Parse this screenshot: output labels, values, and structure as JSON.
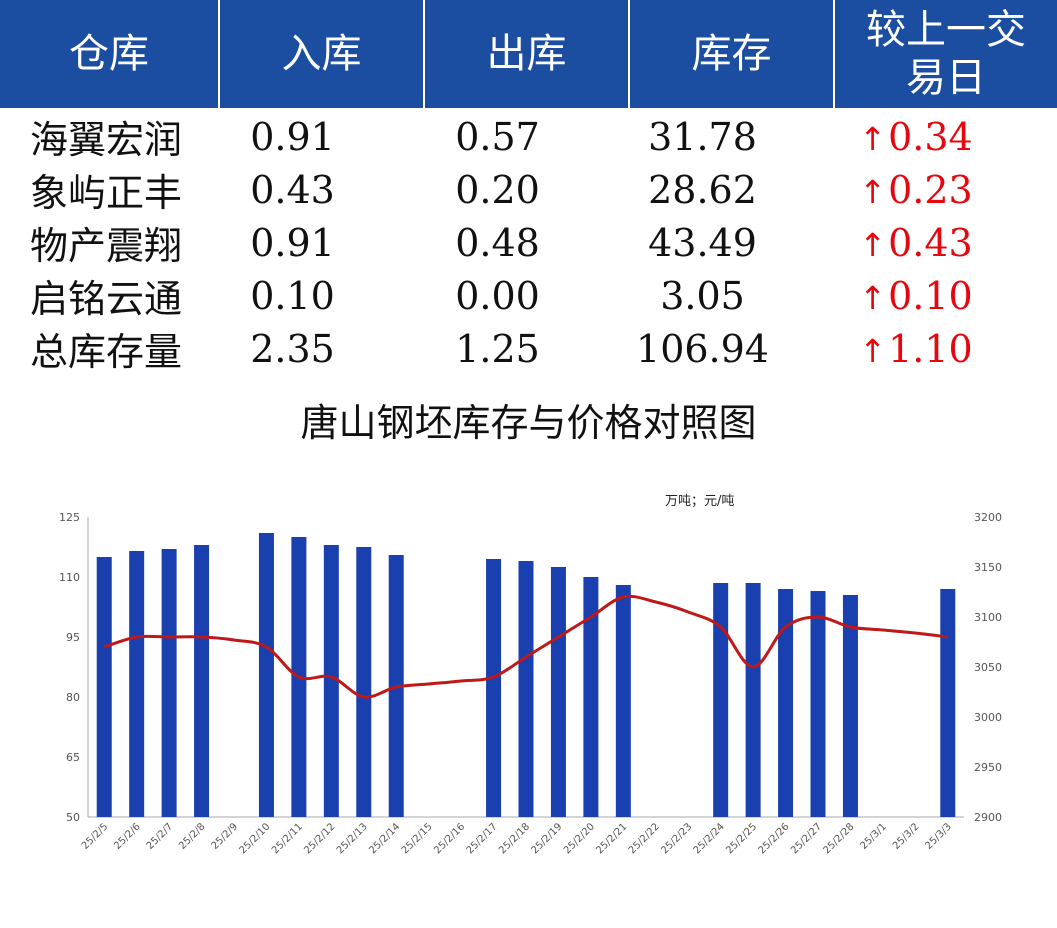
{
  "table": {
    "headers": [
      "仓库",
      "入库",
      "出库",
      "库存",
      "较上一交易日"
    ],
    "rows": [
      {
        "name": "海翼宏润",
        "in": "0.91",
        "out": "0.57",
        "stock": "31.78",
        "change": "0.34"
      },
      {
        "name": "象屿正丰",
        "in": "0.43",
        "out": "0.20",
        "stock": "28.62",
        "change": "0.23"
      },
      {
        "name": "物产震翔",
        "in": "0.91",
        "out": "0.48",
        "stock": "43.49",
        "change": "0.43"
      },
      {
        "name": "启铭云通",
        "in": "0.10",
        "out": "0.00",
        "stock": "3.05",
        "change": "0.10"
      },
      {
        "name": "总库存量",
        "in": "2.35",
        "out": "1.25",
        "stock": "106.94",
        "change": "1.10"
      }
    ],
    "header_color": "#1b4da0",
    "up_color": "#e8060e",
    "up_icon": "up-arrow-icon"
  },
  "chart_data": {
    "type": "bar",
    "title": "唐山钢坯库存与价格对照图",
    "unit_label": "万吨；元/吨",
    "categories": [
      "25/2/5",
      "25/2/6",
      "25/2/7",
      "25/2/8",
      "25/2/9",
      "25/2/10",
      "25/2/11",
      "25/2/12",
      "25/2/13",
      "25/2/14",
      "25/2/15",
      "25/2/16",
      "25/2/17",
      "25/2/18",
      "25/2/19",
      "25/2/20",
      "25/2/21",
      "25/2/22",
      "25/2/23",
      "25/2/24",
      "25/2/25",
      "25/2/26",
      "25/2/27",
      "25/2/28",
      "25/3/1",
      "25/3/2",
      "25/3/3"
    ],
    "series": [
      {
        "type": "bar",
        "axis": "left",
        "color": "#1a3fae",
        "values": [
          115,
          116.5,
          117,
          118,
          null,
          121,
          120,
          118,
          117.5,
          115.5,
          null,
          null,
          114.5,
          114,
          112.5,
          110,
          108,
          null,
          null,
          108.5,
          108.5,
          107,
          106.5,
          105.5,
          null,
          null,
          107
        ]
      },
      {
        "type": "line",
        "axis": "right",
        "color": "#c01818",
        "values": [
          3070,
          3080,
          3080,
          3080,
          3077,
          3070,
          3040,
          3040,
          3020,
          3030,
          3033,
          3036,
          3040,
          3060,
          3080,
          3100,
          3120,
          3115,
          3105,
          3090,
          3050,
          3090,
          3100,
          3090,
          3087,
          3084,
          3080
        ]
      }
    ],
    "y_left": {
      "min": 50,
      "max": 125,
      "ticks": [
        "50",
        "65",
        "80",
        "95",
        "110",
        "125"
      ]
    },
    "y_right": {
      "min": 2900,
      "max": 3200,
      "ticks": [
        "2900",
        "2950",
        "3000",
        "3050",
        "3100",
        "3150",
        "3200"
      ]
    },
    "grid": false,
    "legend": "none"
  }
}
